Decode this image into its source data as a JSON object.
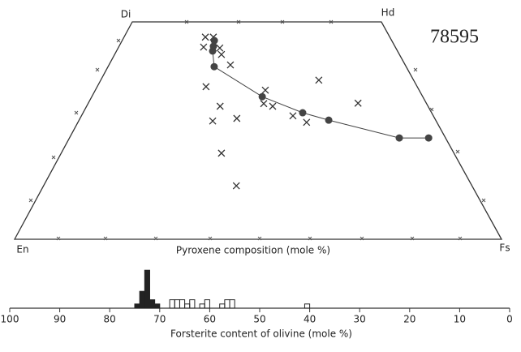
{
  "chart_data": [
    {
      "type": "quadrilateral",
      "title": "78595",
      "xlabel": "Pyroxene composition (mole %)",
      "corners": [
        "En",
        "Di",
        "Hd",
        "Fs"
      ],
      "xlim": [
        0,
        100
      ],
      "ylim": [
        0,
        50
      ],
      "series": [
        {
          "marker": "x",
          "color": "#333",
          "x": [
            30.6,
            33.6,
            30.7,
            36.6,
            37.5,
            41.0,
            34.0,
            52.5,
            69.7,
            51.9,
            54.5,
            79.8,
            39.1,
            37.5,
            44.2,
            60.1,
            63.7,
            40.8,
            45.0
          ],
          "values": [
            46.5,
            46.5,
            44.2,
            44.0,
            42.5,
            40.1,
            35.1,
            34.3,
            36.6,
            31.2,
            30.6,
            31.3,
            30.6,
            27.2,
            27.8,
            28.4,
            26.9,
            19.8,
            12.3
          ]
        },
        {
          "marker": "dot-line",
          "color": "#444",
          "x": [
            34.2,
            34.2,
            34.2,
            35.6,
            51.5,
            63.0,
            70.0,
            87.7,
            95.5
          ],
          "values": [
            45.7,
            44.4,
            43.3,
            39.7,
            32.8,
            29.1,
            27.4,
            23.3,
            23.3
          ]
        }
      ]
    },
    {
      "type": "histogram",
      "xlabel": "Forsterite content of olivine (mole %)",
      "xlim": [
        100,
        0
      ],
      "xticks": [
        100,
        90,
        80,
        70,
        60,
        50,
        40,
        30,
        20,
        10,
        0
      ],
      "bins": [
        40,
        41,
        42,
        43,
        44,
        45,
        46,
        47,
        48,
        49,
        50,
        51,
        52,
        53,
        54,
        55,
        56,
        57,
        58,
        59,
        60,
        61,
        62,
        63,
        64,
        65,
        66,
        67,
        68,
        69,
        70,
        71,
        72,
        73,
        74,
        75,
        76
      ],
      "series": [
        {
          "style": "filled",
          "color": "#222",
          "values": [
            0,
            0,
            0,
            0,
            0,
            0,
            0,
            0,
            0,
            0,
            0,
            0,
            0,
            0,
            0,
            0,
            0,
            0,
            0,
            0,
            0,
            0,
            0,
            0,
            0,
            0,
            0,
            0,
            0,
            0,
            1,
            2,
            9,
            4,
            1,
            0
          ]
        },
        {
          "style": "open",
          "color": "#222",
          "values": [
            1,
            0,
            0,
            0,
            0,
            0,
            0,
            0,
            0,
            0,
            0,
            0,
            0,
            0,
            0,
            2,
            2,
            1,
            0,
            0,
            2,
            1,
            0,
            2,
            1,
            2,
            2,
            2,
            0,
            0,
            0,
            0,
            0,
            0,
            0,
            0
          ]
        }
      ]
    }
  ]
}
